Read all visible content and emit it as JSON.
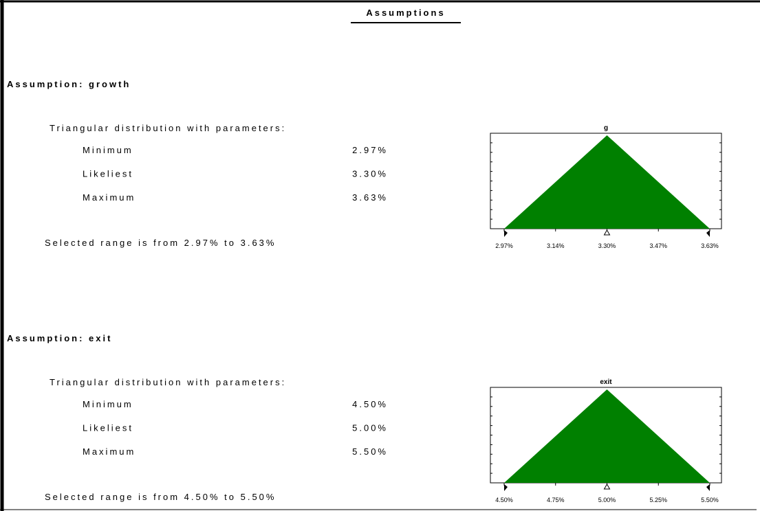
{
  "title": "Assumptions",
  "assumptions": [
    {
      "heading": "Assumption:  growth",
      "distribution": "Triangular distribution with parameters:",
      "parameters": [
        {
          "name": "Minimum",
          "value": "2.97%"
        },
        {
          "name": "Likeliest",
          "value": "3.30%"
        },
        {
          "name": "Maximum",
          "value": "3.63%"
        }
      ],
      "range": "Selected range is from 2.97% to 3.63%",
      "chart": {
        "type": "triangle",
        "title": "g",
        "color": "#008000",
        "values": [
          2.97,
          3.3,
          3.63
        ],
        "xlim": [
          2.97,
          3.63
        ],
        "xticks": [
          {
            "value": 2.97,
            "label": "2.97%"
          },
          {
            "value": 3.135,
            "label": "3.14%"
          },
          {
            "value": 3.3,
            "label": "3.30%"
          },
          {
            "value": 3.465,
            "label": "3.47%"
          },
          {
            "value": 3.63,
            "label": "3.63%"
          }
        ]
      }
    },
    {
      "heading": "Assumption:  exit",
      "distribution": "Triangular distribution with parameters:",
      "parameters": [
        {
          "name": "Minimum",
          "value": "4.50%"
        },
        {
          "name": "Likeliest",
          "value": "5.00%"
        },
        {
          "name": "Maximum",
          "value": "5.50%"
        }
      ],
      "range": "Selected range is from 4.50% to 5.50%",
      "chart": {
        "type": "triangle",
        "title": "exit",
        "color": "#008000",
        "values": [
          4.5,
          5.0,
          5.5
        ],
        "xlim": [
          4.5,
          5.5
        ],
        "xticks": [
          {
            "value": 4.5,
            "label": "4.50%"
          },
          {
            "value": 4.75,
            "label": "4.75%"
          },
          {
            "value": 5.0,
            "label": "5.00%"
          },
          {
            "value": 5.25,
            "label": "5.25%"
          },
          {
            "value": 5.5,
            "label": "5.50%"
          }
        ]
      }
    }
  ]
}
